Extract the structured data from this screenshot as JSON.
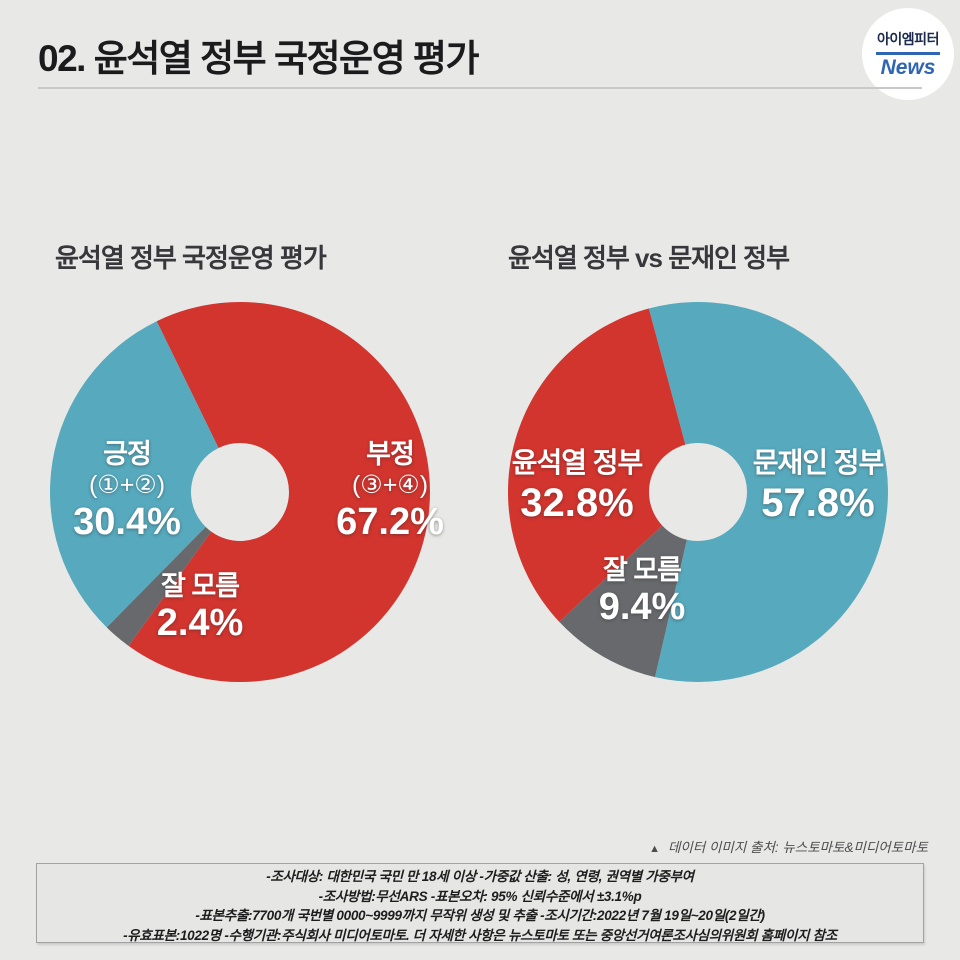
{
  "page": {
    "background": "#e8e8e7"
  },
  "header": {
    "title": "02. 윤석열 정부 국정운영 평가",
    "logo": {
      "name_line": "아이엠피터",
      "news_line": "News",
      "accent_color": "#2f66b3"
    }
  },
  "chart_data": [
    {
      "type": "pie",
      "subtype": "donut",
      "title": "윤석열 정부 국정운영 평가",
      "unit": "%",
      "start_angle_deg": 334,
      "inner_radius_ratio": 0.26,
      "legend_position": "none",
      "slices": [
        {
          "label": "부정 (③+④)",
          "value": 67.2,
          "color": "#d2342e"
        },
        {
          "label": "잘 모름",
          "value": 2.4,
          "color": "#68696c"
        },
        {
          "label": "긍정 (①+②)",
          "value": 30.4,
          "color": "#57a9bd"
        }
      ]
    },
    {
      "type": "pie",
      "subtype": "donut",
      "title": "윤석열 정부 vs 문재인 정부",
      "unit": "%",
      "start_angle_deg": 345,
      "inner_radius_ratio": 0.26,
      "legend_position": "none",
      "slices": [
        {
          "label": "문재인 정부",
          "value": 57.8,
          "color": "#57a9bd"
        },
        {
          "label": "잘 모름",
          "value": 9.4,
          "color": "#68696c"
        },
        {
          "label": "윤석열 정부",
          "value": 32.8,
          "color": "#d2342e"
        }
      ]
    }
  ],
  "overlays": {
    "left_positive": {
      "line1": "긍정",
      "line2": "(①+②)",
      "line3": "30.4%"
    },
    "left_negative": {
      "line1": "부정",
      "line2": "(③+④)",
      "line3": "67.2%"
    },
    "left_unknown": {
      "line1": "잘 모름",
      "line2": "2.4%"
    },
    "right_yoon": {
      "line1": "윤석열 정부",
      "line2": "32.8%"
    },
    "right_moon": {
      "line1": "문재인 정부",
      "line2": "57.8%"
    },
    "right_unknown": {
      "line1": "잘 모름",
      "line2": "9.4%"
    }
  },
  "source_note": {
    "marker": "▲",
    "text": "데이터 이미지 출처: 뉴스토마토&미디어토마토"
  },
  "footer": {
    "lines": [
      "-조사대상: 대한민국 국민 만 18세 이상  -가중값 산출: 성, 연령, 권역별 가중부여",
      "-조사방법:무선ARS -표본오차: 95% 신뢰수준에서 ±3.1%p",
      "-표본추출:7700개 국번별 0000~9999까지 무작위 생성 및 추출 -조시기간:2022년 7월 19일~20일(2일간)",
      "-유효표본:1022명 -수행기관:주식회사 미디어토마토. 더 자세한 사항은 뉴스토마토 또는 중앙선거여론조사심의위원회 홈페이지 참조"
    ]
  }
}
